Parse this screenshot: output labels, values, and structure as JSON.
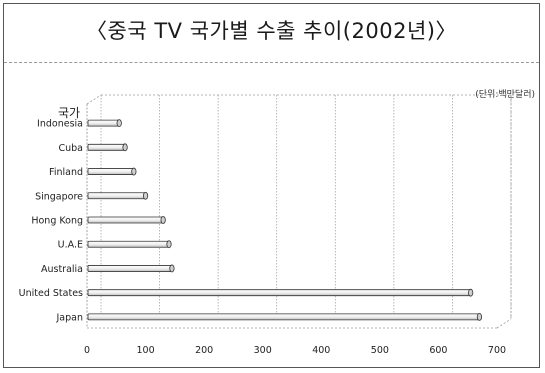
{
  "title": "〈중국 TV 국가별 수출 추이(2002년)〉",
  "unit_note": "(단위:백만달러)",
  "chart_data": {
    "type": "bar",
    "orientation": "horizontal",
    "title": "〈중국 TV 국가별 수출 추이(2002년)〉",
    "ylabel": "국가",
    "xlabel": "",
    "unit": "(단위:백만달러)",
    "categories": [
      "Indonesia",
      "Cuba",
      "Finland",
      "Singapore",
      "Hong Kong",
      "U.A.E",
      "Australia",
      "United States",
      "Japan"
    ],
    "values": [
      55,
      65,
      80,
      100,
      130,
      140,
      145,
      655,
      670
    ],
    "xlim": [
      0,
      700
    ],
    "xticks": [
      "0",
      "100",
      "200",
      "300",
      "400",
      "500",
      "600",
      "700"
    ],
    "grid": "vertical",
    "colors": {
      "bar_fill": "#f4f4f4",
      "bar_stroke": "#333333",
      "grid": "#9a9a9a",
      "text": "#222222"
    }
  }
}
